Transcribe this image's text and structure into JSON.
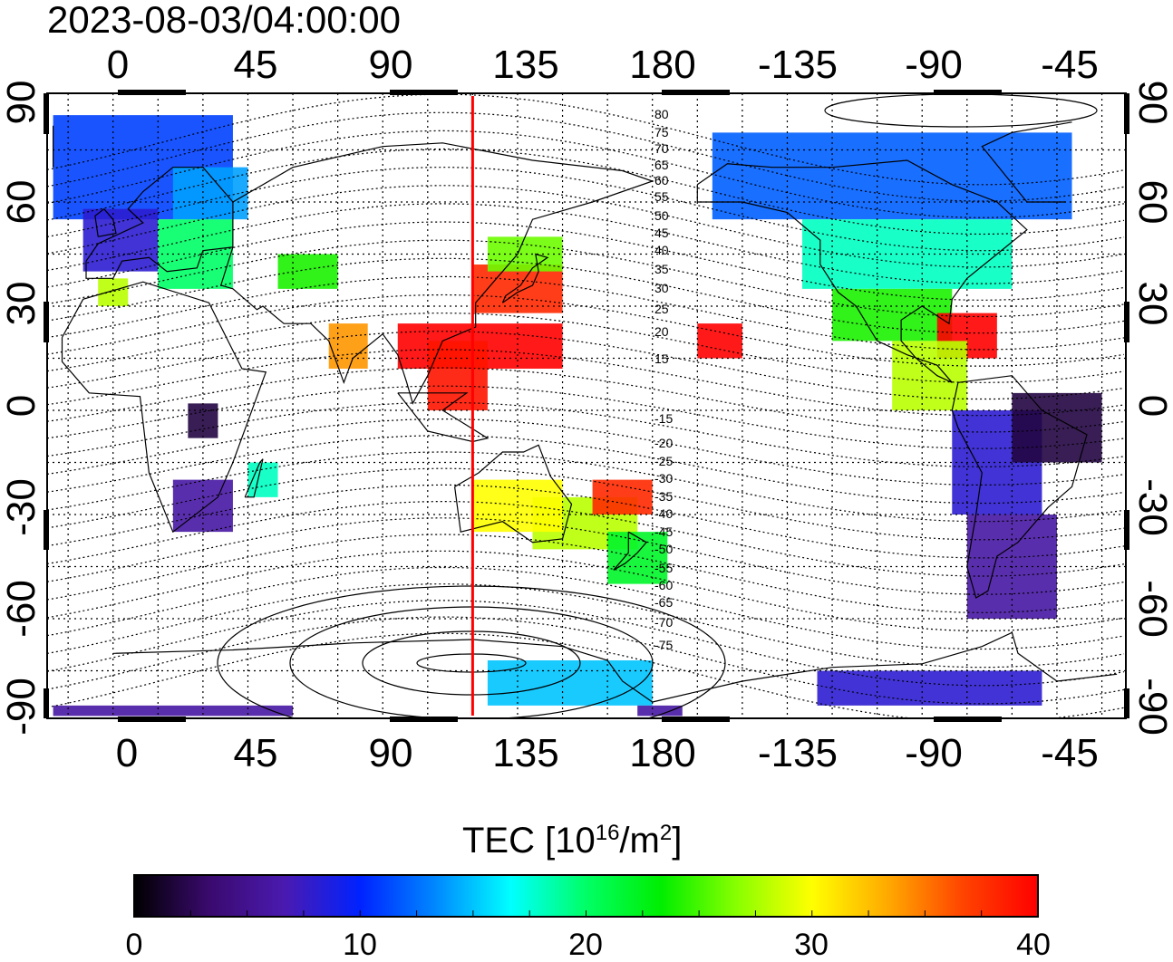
{
  "title": "2023-08-03/04:00:00",
  "map": {
    "top_lon_labels": [
      "0",
      "45",
      "90",
      "135",
      "180",
      "-135",
      "-90",
      "-45"
    ],
    "bottom_lon_labels": [
      "0",
      "45",
      "90",
      "135",
      "180",
      "-135",
      "-90",
      "-45"
    ],
    "left_lat_labels": [
      "90",
      "60",
      "30",
      "0",
      "-30",
      "-60",
      "-90"
    ],
    "right_lat_labels": [
      "90",
      "60",
      "30",
      "0",
      "-30",
      "-60",
      "-90"
    ],
    "contour_labels": [
      "80",
      "75",
      "70",
      "65",
      "60",
      "55",
      "50",
      "45",
      "40",
      "35",
      "30",
      "25",
      "20",
      "15",
      "-15",
      "-20",
      "-25",
      "-30",
      "-35",
      "-40",
      "-45",
      "-50",
      "-55",
      "-60",
      "-65",
      "-70",
      "-75"
    ],
    "terminator_color": "#ff0000",
    "terminator_lon": 120
  },
  "colorbar": {
    "title_prefix": "TEC  [10",
    "title_sup1": "16",
    "title_mid": "/m",
    "title_sup2": "2",
    "title_suffix": "]",
    "tick_labels": [
      "0",
      "10",
      "20",
      "30",
      "40"
    ],
    "range": [
      0,
      40
    ],
    "colormap": [
      "#000000",
      "#3a0a6e",
      "#4a1ab0",
      "#0022ff",
      "#0088ff",
      "#00ffff",
      "#00ff66",
      "#00ee00",
      "#88ff00",
      "#ffff00",
      "#ffaa00",
      "#ff4400",
      "#ff0000"
    ]
  }
}
